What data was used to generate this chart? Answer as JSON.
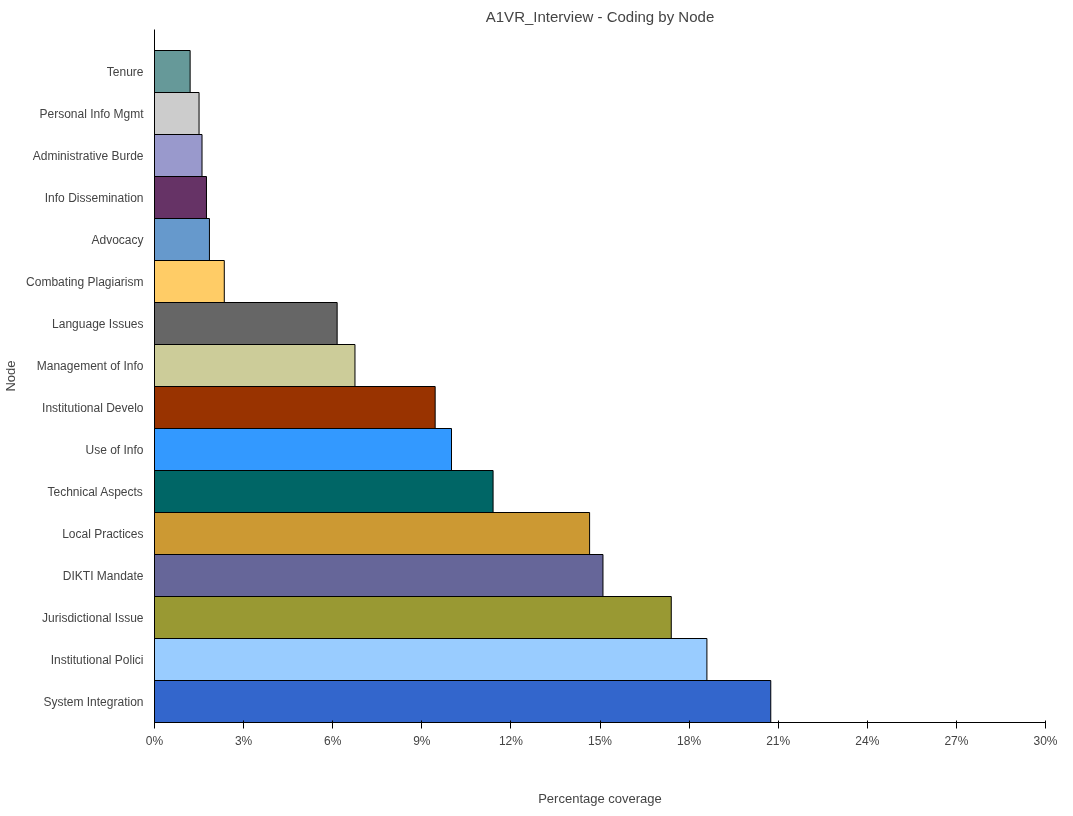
{
  "chart_data": {
    "type": "bar",
    "orientation": "horizontal",
    "title": "A1VR_Interview - Coding by Node",
    "xlabel": "Percentage coverage",
    "ylabel": "Node",
    "categories": [
      "Tenure",
      "Personal Info Mgmt",
      "Administrative Burde",
      "Info Dissemination",
      "Advocacy",
      "Combating Plagiarism",
      "Language Issues",
      "Management of Info",
      "Institutional Develo",
      "Use of Info",
      "Technical Aspects",
      "Local Practices",
      "DIKTI Mandate",
      "Jurisdictional Issue",
      "Institutional Polici",
      "System Integration"
    ],
    "values": [
      1.2,
      1.5,
      1.6,
      1.75,
      1.85,
      2.35,
      6.15,
      6.75,
      9.45,
      10.0,
      11.4,
      14.65,
      15.1,
      17.4,
      18.6,
      20.75
    ],
    "colors": [
      "#669999",
      "#cccccc",
      "#9999cc",
      "#663366",
      "#6699cc",
      "#ffcc66",
      "#666666",
      "#cccc99",
      "#993300",
      "#3399ff",
      "#006666",
      "#cc9933",
      "#666699",
      "#999933",
      "#99ccff",
      "#3366cc"
    ],
    "xlim": [
      0,
      30
    ],
    "xticks": [
      {
        "value": 0,
        "label": "0%"
      },
      {
        "value": 3,
        "label": "3%"
      },
      {
        "value": 6,
        "label": "6%"
      },
      {
        "value": 9,
        "label": "9%"
      },
      {
        "value": 12,
        "label": "12%"
      },
      {
        "value": 15,
        "label": "15%"
      },
      {
        "value": 18,
        "label": "18%"
      },
      {
        "value": 21,
        "label": "21%"
      },
      {
        "value": 24,
        "label": "24%"
      },
      {
        "value": 27,
        "label": "27%"
      },
      {
        "value": 30,
        "label": "30%"
      }
    ],
    "grid": false
  }
}
